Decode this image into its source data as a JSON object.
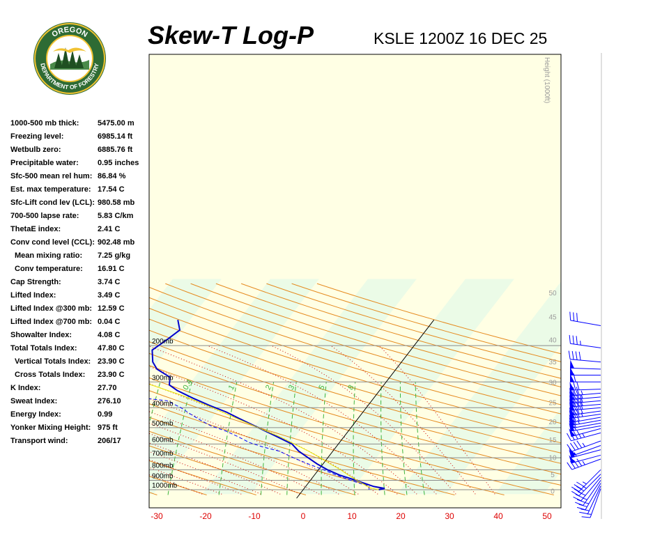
{
  "header": {
    "title": "Skew-T Log-P",
    "subtitle": "KSLE 1200Z 16 DEC 25"
  },
  "logo": {
    "top_text": "OREGON",
    "bottom_text": "DEPARTMENT OF FORESTRY",
    "colors": {
      "ring": "#2e6b34",
      "gold": "#f1c232"
    }
  },
  "indices": [
    {
      "label": "1000-500 mb thick:",
      "value": "5475.00 m",
      "indent": false
    },
    {
      "label": "Freezing level:",
      "value": "6985.14 ft",
      "indent": false
    },
    {
      "label": "Wetbulb zero:",
      "value": "6885.76 ft",
      "indent": false
    },
    {
      "label": "Precipitable water:",
      "value": "0.95 inches",
      "indent": false
    },
    {
      "label": "Sfc-500 mean rel hum:",
      "value": "86.84 %",
      "indent": false
    },
    {
      "label": "Est. max temperature:",
      "value": "17.54 C",
      "indent": false
    },
    {
      "label": "Sfc-Lift cond lev (LCL):",
      "value": "980.58 mb",
      "indent": false
    },
    {
      "label": "700-500 lapse rate:",
      "value": "5.83 C/km",
      "indent": false
    },
    {
      "label": "ThetaE index:",
      "value": "2.41 C",
      "indent": false
    },
    {
      "label": "Conv cond level (CCL):",
      "value": "902.48 mb",
      "indent": false
    },
    {
      "label": "Mean mixing ratio:",
      "value": "7.25 g/kg",
      "indent": true
    },
    {
      "label": "Conv temperature:",
      "value": "16.91 C",
      "indent": true
    },
    {
      "label": "Cap Strength:",
      "value": "3.74 C",
      "indent": false
    },
    {
      "label": "Lifted Index:",
      "value": "3.49 C",
      "indent": false
    },
    {
      "label": "Lifted Index @300 mb:",
      "value": "12.59 C",
      "indent": false
    },
    {
      "label": "Lifted Index @700 mb:",
      "value": "0.04 C",
      "indent": false
    },
    {
      "label": "Showalter Index:",
      "value": "4.08 C",
      "indent": false
    },
    {
      "label": "Total Totals Index:",
      "value": "47.80 C",
      "indent": false
    },
    {
      "label": "Vertical Totals Index:",
      "value": "23.90 C",
      "indent": true
    },
    {
      "label": "Cross Totals Index:",
      "value": "23.90 C",
      "indent": true
    },
    {
      "label": "K Index:",
      "value": "27.70",
      "indent": false
    },
    {
      "label": "Sweat Index:",
      "value": "276.10",
      "indent": false
    },
    {
      "label": "Energy Index:",
      "value": "0.99",
      "indent": false
    },
    {
      "label": "Yonker Mixing Height:",
      "value": "975 ft",
      "indent": false
    },
    {
      "label": "Transport wind:",
      "value": "206/17",
      "indent": false
    }
  ],
  "chart_data": {
    "type": "line",
    "xlabel": "",
    "ylabel": "",
    "height_axis_label": "Height (1000ft)",
    "xlim": [
      -30,
      50
    ],
    "x_ticks": [
      -30,
      -20,
      -10,
      0,
      10,
      20,
      30,
      40,
      50
    ],
    "pressure_levels": [
      {
        "p": 200,
        "label": "200mb"
      },
      {
        "p": 300,
        "label": "300mb"
      },
      {
        "p": 400,
        "label": "400mb"
      },
      {
        "p": 500,
        "label": "500mb"
      },
      {
        "p": 600,
        "label": "600mb"
      },
      {
        "p": 700,
        "label": "700mb"
      },
      {
        "p": 800,
        "label": "800mb"
      },
      {
        "p": 900,
        "label": "900mb"
      },
      {
        "p": 1000,
        "label": "1000mb"
      }
    ],
    "height_ticks": [
      "0",
      "5",
      "10",
      "15",
      "20",
      "25",
      "30",
      "35",
      "40",
      "45",
      "50"
    ],
    "mixing_ratio_labels": [
      {
        "w": 0.4,
        "label": "0.4"
      },
      {
        "w": 1,
        "label": "1"
      },
      {
        "w": 2,
        "label": "2"
      },
      {
        "w": 3,
        "label": "3"
      },
      {
        "w": 5,
        "label": "5"
      },
      {
        "w": 8,
        "label": "8"
      }
    ],
    "series": [
      {
        "key": "temperature",
        "color": "#0000cc",
        "points": [
          {
            "p": 1000,
            "t": 15.5
          },
          {
            "p": 985,
            "t": 16.5
          },
          {
            "p": 965,
            "t": 14.0
          },
          {
            "p": 930,
            "t": 11.5
          },
          {
            "p": 890,
            "t": 8.5
          },
          {
            "p": 850,
            "t": 5.2
          },
          {
            "p": 800,
            "t": 1.8
          },
          {
            "p": 750,
            "t": -1.2
          },
          {
            "p": 700,
            "t": -4.0
          },
          {
            "p": 650,
            "t": -7.0
          },
          {
            "p": 600,
            "t": -9.5
          },
          {
            "p": 550,
            "t": -14.0
          },
          {
            "p": 500,
            "t": -19.0
          },
          {
            "p": 450,
            "t": -24.5
          },
          {
            "p": 420,
            "t": -28.0
          },
          {
            "p": 390,
            "t": -32.5
          },
          {
            "p": 360,
            "t": -37.0
          },
          {
            "p": 330,
            "t": -41.5
          },
          {
            "p": 310,
            "t": -44.0
          },
          {
            "p": 285,
            "t": -45.0
          },
          {
            "p": 260,
            "t": -49.0
          },
          {
            "p": 240,
            "t": -51.0
          },
          {
            "p": 210,
            "t": -53.0
          },
          {
            "p": 185,
            "t": -51.5
          },
          {
            "p": 168,
            "t": -50.5
          },
          {
            "p": 150,
            "t": -52.5
          }
        ]
      },
      {
        "key": "dewpoint",
        "color": "#0000ff",
        "dashed": true,
        "points": [
          {
            "p": 1000,
            "t": 13.5
          },
          {
            "p": 960,
            "t": 13.0
          },
          {
            "p": 930,
            "t": 10.5
          },
          {
            "p": 890,
            "t": 7.5
          },
          {
            "p": 850,
            "t": 4.5
          },
          {
            "p": 800,
            "t": 1.0
          },
          {
            "p": 750,
            "t": -3.0
          },
          {
            "p": 700,
            "t": -7.0
          },
          {
            "p": 650,
            "t": -11.0
          },
          {
            "p": 620,
            "t": -15.0
          },
          {
            "p": 590,
            "t": -18.5
          },
          {
            "p": 550,
            "t": -22.0
          },
          {
            "p": 520,
            "t": -25.0
          },
          {
            "p": 490,
            "t": -29.0
          },
          {
            "p": 460,
            "t": -32.0
          },
          {
            "p": 430,
            "t": -35.0
          },
          {
            "p": 400,
            "t": -38.0
          },
          {
            "p": 370,
            "t": -42.0
          },
          {
            "p": 350,
            "t": -52.0
          },
          {
            "p": 330,
            "t": -60.0
          },
          {
            "p": 310,
            "t": -63.0
          },
          {
            "p": 285,
            "t": -66.0
          },
          {
            "p": 270,
            "t": -57.0
          },
          {
            "p": 255,
            "t": -60.0
          },
          {
            "p": 230,
            "t": -68.0
          },
          {
            "p": 205,
            "t": -73.0
          },
          {
            "p": 180,
            "t": -77.0
          },
          {
            "p": 160,
            "t": -80.0
          }
        ]
      },
      {
        "key": "parcel",
        "color": "#e6e600",
        "points": [
          {
            "p": 1000,
            "t": 15.5
          },
          {
            "p": 980,
            "t": 13.5
          },
          {
            "p": 940,
            "t": 11.5
          },
          {
            "p": 900,
            "t": 9.5
          },
          {
            "p": 850,
            "t": 7.0
          },
          {
            "p": 800,
            "t": 4.5
          },
          {
            "p": 750,
            "t": 1.5
          },
          {
            "p": 700,
            "t": -1.5
          },
          {
            "p": 650,
            "t": -5.0
          },
          {
            "p": 600,
            "t": -9.0
          },
          {
            "p": 550,
            "t": -13.5
          },
          {
            "p": 500,
            "t": -19.0
          },
          {
            "p": 450,
            "t": -25.0
          },
          {
            "p": 400,
            "t": -31.5
          },
          {
            "p": 350,
            "t": -39.5
          },
          {
            "p": 320,
            "t": -45.5
          },
          {
            "p": 300,
            "t": -50.0
          }
        ]
      }
    ],
    "wind_barbs": [
      {
        "p": 990,
        "dir": 200,
        "kt": 15
      },
      {
        "p": 960,
        "dir": 205,
        "kt": 20
      },
      {
        "p": 930,
        "dir": 210,
        "kt": 25
      },
      {
        "p": 900,
        "dir": 215,
        "kt": 25
      },
      {
        "p": 870,
        "dir": 220,
        "kt": 30
      },
      {
        "p": 840,
        "dir": 225,
        "kt": 35
      },
      {
        "p": 800,
        "dir": 225,
        "kt": 35
      },
      {
        "p": 710,
        "dir": 250,
        "kt": 45
      },
      {
        "p": 680,
        "dir": 255,
        "kt": 50
      },
      {
        "p": 640,
        "dir": 255,
        "kt": 55
      },
      {
        "p": 610,
        "dir": 250,
        "kt": 50
      },
      {
        "p": 580,
        "dir": 250,
        "kt": 45
      },
      {
        "p": 530,
        "dir": 255,
        "kt": 45
      },
      {
        "p": 505,
        "dir": 255,
        "kt": 50
      },
      {
        "p": 490,
        "dir": 260,
        "kt": 55
      },
      {
        "p": 475,
        "dir": 260,
        "kt": 60
      },
      {
        "p": 460,
        "dir": 260,
        "kt": 65
      },
      {
        "p": 445,
        "dir": 260,
        "kt": 70
      },
      {
        "p": 430,
        "dir": 262,
        "kt": 75
      },
      {
        "p": 415,
        "dir": 262,
        "kt": 80
      },
      {
        "p": 400,
        "dir": 265,
        "kt": 80
      },
      {
        "p": 385,
        "dir": 265,
        "kt": 80
      },
      {
        "p": 370,
        "dir": 265,
        "kt": 80
      },
      {
        "p": 355,
        "dir": 265,
        "kt": 75
      },
      {
        "p": 340,
        "dir": 265,
        "kt": 75
      },
      {
        "p": 325,
        "dir": 268,
        "kt": 70
      },
      {
        "p": 300,
        "dir": 270,
        "kt": 60
      },
      {
        "p": 278,
        "dir": 270,
        "kt": 50
      },
      {
        "p": 260,
        "dir": 272,
        "kt": 50
      },
      {
        "p": 240,
        "dir": 275,
        "kt": 40
      },
      {
        "p": 205,
        "dir": 278,
        "kt": 35
      },
      {
        "p": 160,
        "dir": 280,
        "kt": 30
      }
    ]
  }
}
